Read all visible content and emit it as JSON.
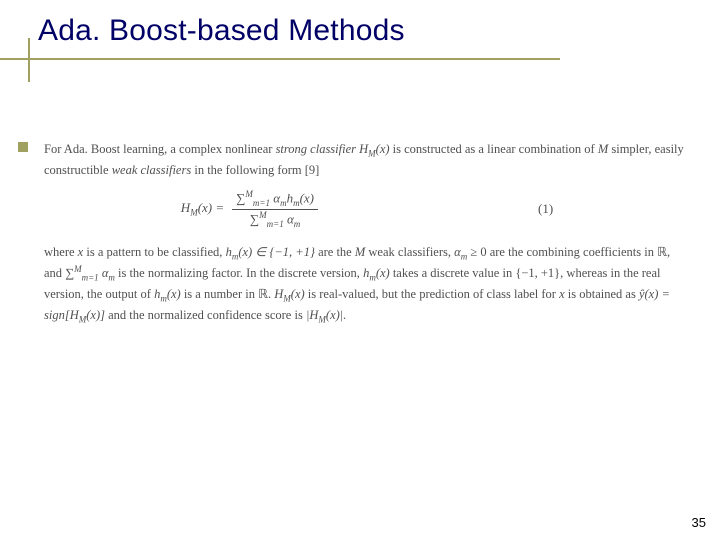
{
  "title": "Ada. Boost-based Methods",
  "accent_color": "#a0a060",
  "title_color": "#000066",
  "page_number": "35",
  "paragraph1": {
    "prefix": "For Ada. Boost learning, a complex nonlinear ",
    "strong": "strong classifier",
    "mid1": " ",
    "hm": "H",
    "hmSub": "M",
    "hmArg": "(x)",
    "mid2": " is constructed as a linear combination of ",
    "mvar": "M",
    "mid3": " simpler, easily constructible ",
    "weak": "weak classifiers",
    "suffix": " in the following form [9]"
  },
  "equation": {
    "lhs_H": "H",
    "lhs_sub": "M",
    "lhs_arg": "(x) =",
    "num": "∑",
    "num_sub": "m=1",
    "num_sup": "M",
    "num_body": " α",
    "num_body_sub": "m",
    "num_body2": "h",
    "num_body2_sub": "m",
    "num_body2_arg": "(x)",
    "den": "∑",
    "den_sub": "m=1",
    "den_sup": "M",
    "den_body": " α",
    "den_body_sub": "m",
    "number": "(1)"
  },
  "paragraph2": {
    "t01": "where ",
    "t02": "x",
    "t03": " is a pattern to be classified, ",
    "t04": "h",
    "t04sub": "m",
    "t05": "(x) ∈ {−1, +1}",
    "t06": " are the ",
    "t07": "M",
    "t08": " weak classifiers, ",
    "t09": "α",
    "t09sub": "m",
    "t10": " ≥ 0 are the combining coefficients in ℝ, and ",
    "t11": "∑",
    "t11sub": "m=1",
    "t11sup": "M",
    "t12": " α",
    "t12sub": "m",
    "t13": " is the normalizing factor. In the discrete version, ",
    "t14": "h",
    "t14sub": "m",
    "t15": "(x)",
    "t16": " takes a discrete value in {−1, +1}, whereas in the real version, the output of ",
    "t17": "h",
    "t17sub": "m",
    "t18": "(x)",
    "t19": " is a number in ℝ. ",
    "t20": "H",
    "t20sub": "M",
    "t21": "(x)",
    "t22": " is real-valued, but the prediction of class label for ",
    "t23": "x",
    "t24": " is obtained as ",
    "t25": "ŷ(x) = sign[H",
    "t25sub": "M",
    "t26": "(x)]",
    "t27": " and the normalized confidence score is ",
    "t28": "|H",
    "t28sub": "M",
    "t29": "(x)|."
  }
}
